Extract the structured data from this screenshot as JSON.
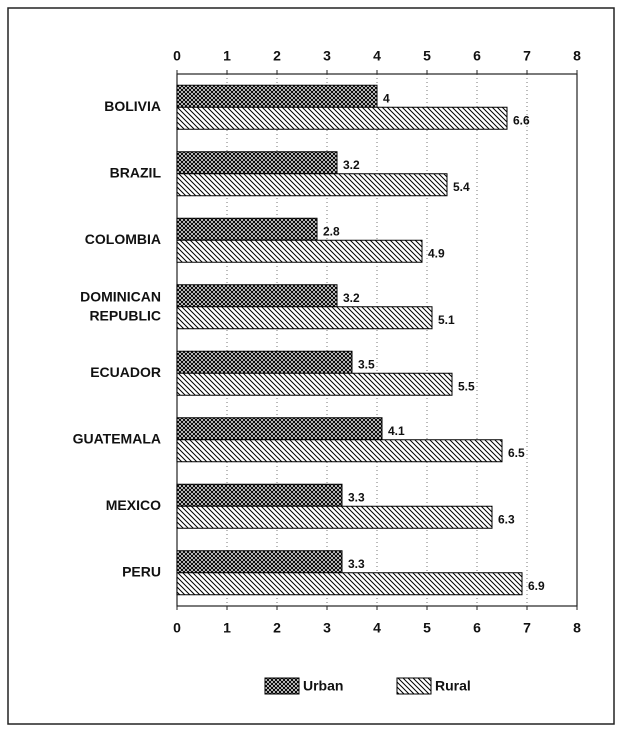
{
  "chart_data": {
    "type": "bar",
    "orientation": "horizontal",
    "categories": [
      "BOLIVIA",
      "BRAZIL",
      "COLOMBIA",
      "DOMINICAN REPUBLIC",
      "ECUADOR",
      "GUATEMALA",
      "MEXICO",
      "PERU"
    ],
    "series": [
      {
        "name": "Urban",
        "color": "#000000",
        "pattern": "crosshatch",
        "values": [
          4,
          3.2,
          2.8,
          3.2,
          3.5,
          4.1,
          3.3,
          3.3
        ]
      },
      {
        "name": "Rural",
        "color": "#000000",
        "pattern": "diagonal",
        "values": [
          6.6,
          5.4,
          4.9,
          5.1,
          5.5,
          6.5,
          6.3,
          6.9
        ]
      }
    ],
    "xlim": [
      0,
      8
    ],
    "xticks": [
      0,
      1,
      2,
      3,
      4,
      5,
      6,
      7,
      8
    ],
    "grid": true,
    "legend": "bottom"
  }
}
